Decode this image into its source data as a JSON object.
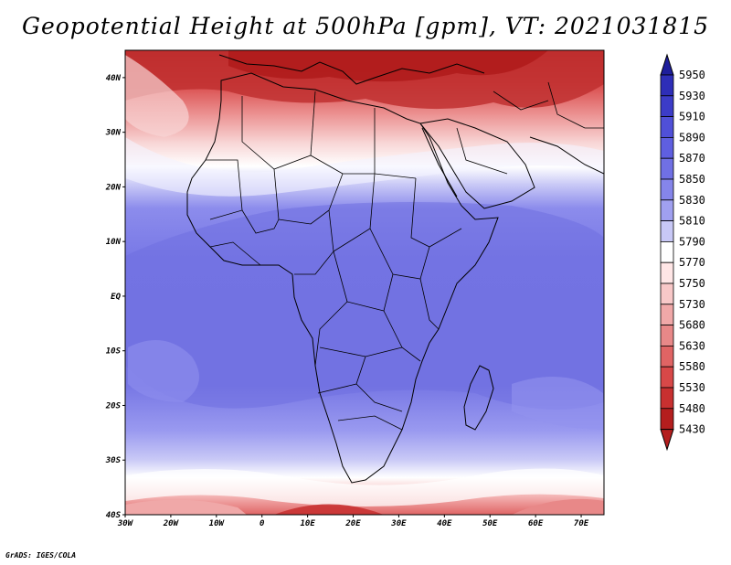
{
  "title": "Geopotential Height at 500hPa [gpm], VT: 2021031815",
  "credit": "GrADS: IGES/COLA",
  "map": {
    "lat_labels": [
      "40N",
      "30N",
      "20N",
      "10N",
      "EQ",
      "10S",
      "20S",
      "30S",
      "40S"
    ],
    "lon_labels": [
      "30W",
      "20W",
      "10W",
      "0",
      "10E",
      "20E",
      "30E",
      "40E",
      "50E",
      "60E",
      "70E"
    ],
    "extent": {
      "lon_min": -30,
      "lon_max": 75,
      "lat_min": -40,
      "lat_max": 45
    }
  },
  "colorbar": {
    "levels": [
      "5950",
      "5930",
      "5910",
      "5890",
      "5870",
      "5850",
      "5830",
      "5810",
      "5790",
      "5770",
      "5750",
      "5730",
      "5680",
      "5630",
      "5580",
      "5530",
      "5480",
      "5430"
    ],
    "colors": [
      "#1e1e9c",
      "#2e2eb8",
      "#3c3cc8",
      "#5050d8",
      "#5f5fe0",
      "#7070e4",
      "#8585ea",
      "#a0a0f0",
      "#c8c8f6",
      "#ffffff",
      "#ffe6e6",
      "#f8c8c8",
      "#f0a8a8",
      "#e88888",
      "#e06464",
      "#d84848",
      "#c83030",
      "#b41e1e"
    ]
  },
  "colors": {
    "purple_main": "#7878e8",
    "purple_light": "#9898f0",
    "red_dark": "#b41e1e",
    "red_mid": "#e06464",
    "pink": "#f6c0c0"
  }
}
